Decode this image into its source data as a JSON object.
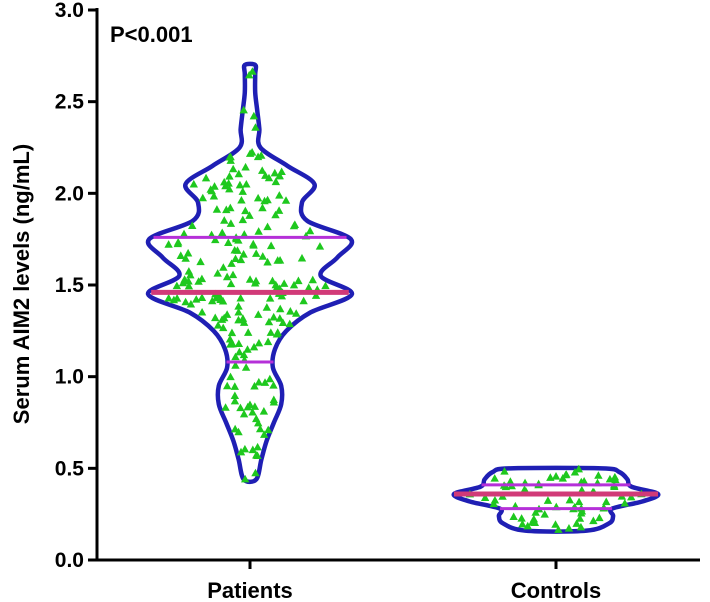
{
  "chart_data": {
    "type": "violin",
    "title": "",
    "annotation": "P<0.001",
    "ylabel": "Serum AIM2 levels (ng/mL)",
    "xlabel": "",
    "ylim": [
      0,
      3.0
    ],
    "yticks": [
      "0.0",
      "0.5",
      "1.0",
      "1.5",
      "2.0",
      "2.5",
      "3.0"
    ],
    "categories": [
      "Patients",
      "Controls"
    ],
    "colors": {
      "violin_outline": "#1f1fb4",
      "points": "#1ec81e",
      "median": "#d13a78",
      "quartiles": "#b530d8"
    },
    "groups": [
      {
        "name": "Patients",
        "min": 0.44,
        "max": 2.7,
        "q1": 1.08,
        "median": 1.46,
        "q3": 1.76,
        "n_points": 220,
        "density": [
          [
            0.44,
            0.06
          ],
          [
            0.55,
            0.11
          ],
          [
            0.65,
            0.16
          ],
          [
            0.75,
            0.23
          ],
          [
            0.85,
            0.3
          ],
          [
            0.95,
            0.3
          ],
          [
            1.05,
            0.22
          ],
          [
            1.15,
            0.24
          ],
          [
            1.25,
            0.35
          ],
          [
            1.35,
            0.58
          ],
          [
            1.45,
            0.98
          ],
          [
            1.55,
            0.68
          ],
          [
            1.65,
            0.84
          ],
          [
            1.75,
            0.97
          ],
          [
            1.85,
            0.55
          ],
          [
            1.95,
            0.5
          ],
          [
            2.05,
            0.62
          ],
          [
            2.15,
            0.36
          ],
          [
            2.25,
            0.1
          ],
          [
            2.35,
            0.09
          ],
          [
            2.45,
            0.07
          ],
          [
            2.55,
            0.05
          ],
          [
            2.65,
            0.05
          ],
          [
            2.7,
            0.05
          ]
        ]
      },
      {
        "name": "Controls",
        "min": 0.16,
        "max": 0.5,
        "q1": 0.28,
        "median": 0.36,
        "q3": 0.41,
        "n_points": 70,
        "density": [
          [
            0.16,
            0.3
          ],
          [
            0.2,
            0.52
          ],
          [
            0.24,
            0.56
          ],
          [
            0.28,
            0.55
          ],
          [
            0.32,
            0.85
          ],
          [
            0.36,
            1.0
          ],
          [
            0.4,
            0.74
          ],
          [
            0.44,
            0.7
          ],
          [
            0.48,
            0.62
          ],
          [
            0.5,
            0.45
          ]
        ]
      }
    ]
  }
}
